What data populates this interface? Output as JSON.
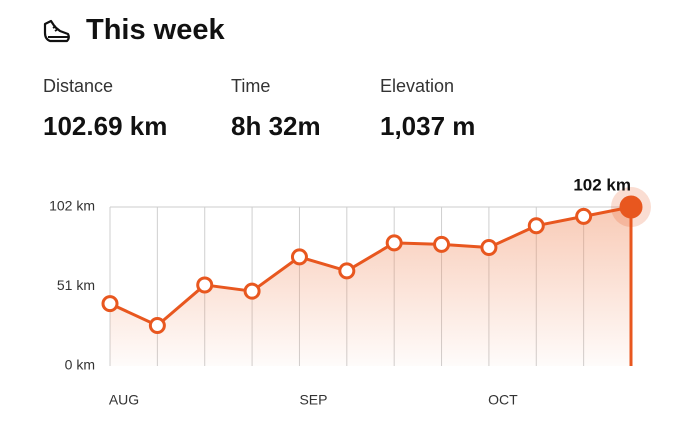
{
  "header": {
    "title": "This week"
  },
  "stats": [
    {
      "label": "Distance",
      "value": "102.69 km"
    },
    {
      "label": "Time",
      "value": "8h 32m"
    },
    {
      "label": "Elevation",
      "value": "1,037 m"
    }
  ],
  "chart_data": {
    "type": "line",
    "categories": [
      "AUG",
      null,
      null,
      null,
      "SEP",
      null,
      null,
      null,
      "OCT",
      null,
      null,
      null
    ],
    "series": [
      {
        "name": "Distance",
        "color": "#e8571f",
        "values": [
          40,
          26,
          52,
          48,
          70,
          61,
          79,
          78,
          76,
          90,
          96,
          102
        ],
        "value_labels": [
          null,
          null,
          null,
          null,
          null,
          null,
          null,
          null,
          null,
          null,
          null,
          "102 km"
        ]
      }
    ],
    "ylim": [
      0,
      102
    ],
    "yticks": [
      {
        "value": 0,
        "label": "0 km"
      },
      {
        "value": 51,
        "label": "51 km"
      },
      {
        "value": 102,
        "label": "102 km"
      }
    ],
    "grid": true
  }
}
